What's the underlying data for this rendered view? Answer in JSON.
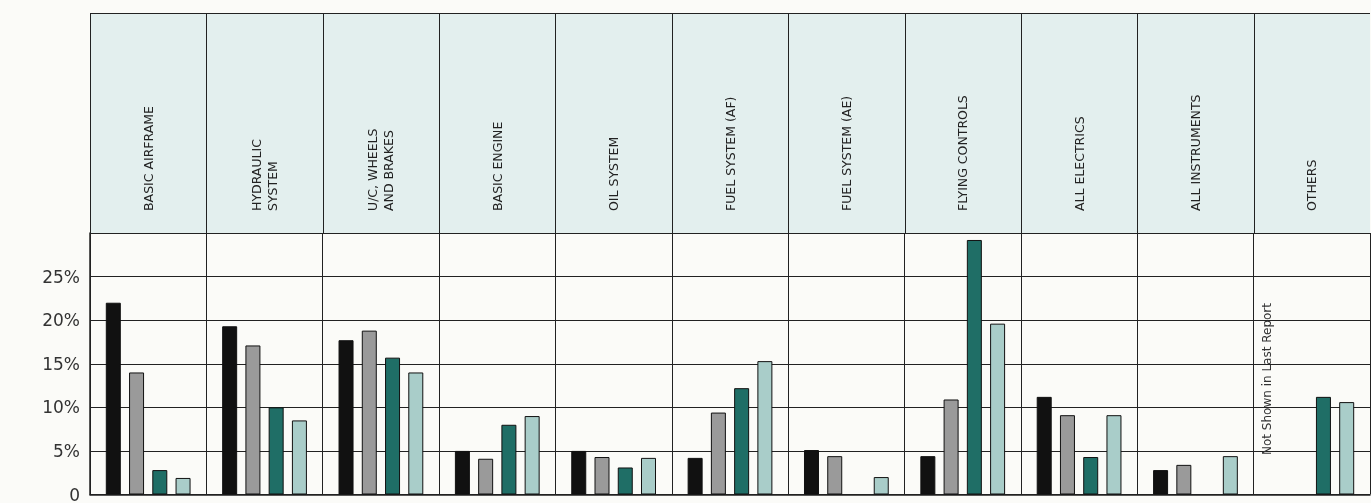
{
  "chart_data": {
    "type": "bar",
    "categories": [
      "BASIC AIRFRAME",
      "HYDRAULIC\nSYSTEM",
      "U/C, WHEELS\nAND BRAKES",
      "BASIC ENGINE",
      "OIL SYSTEM",
      "FUEL SYSTEM (AF)",
      "FUEL SYSTEM (AE)",
      "FLYING CONTROLS",
      "ALL ELECTRICS",
      "ALL INSTRUMENTS",
      "OTHERS"
    ],
    "series": [
      {
        "color": "#111111",
        "values": [
          22,
          19.3,
          17.7,
          5,
          5,
          4.2,
          5.1,
          4.4,
          11.2,
          2.8,
          null
        ]
      },
      {
        "color": "#9a9a9a",
        "values": [
          14,
          17.1,
          18.8,
          4.1,
          4.3,
          9.4,
          4.4,
          10.9,
          9.1,
          3.4,
          null
        ]
      },
      {
        "color": "#1f6e66",
        "values": [
          2.8,
          10,
          15.7,
          8,
          3.1,
          12.2,
          null,
          29.2,
          4.3,
          null,
          11.2
        ]
      },
      {
        "color": "#a9cdc9",
        "values": [
          1.9,
          8.5,
          14,
          9,
          4.2,
          15.3,
          2,
          19.6,
          9.1,
          4.4,
          10.6
        ]
      }
    ],
    "ylim": [
      0,
      30
    ],
    "yticks": [
      {
        "value": 0,
        "label": "0"
      },
      {
        "value": 5,
        "label": "5%"
      },
      {
        "value": 10,
        "label": "10%"
      },
      {
        "value": 15,
        "label": "15%"
      },
      {
        "value": 20,
        "label": "20%"
      },
      {
        "value": 25,
        "label": "25%"
      }
    ],
    "annotations": [
      "Not Shown in Last Report"
    ],
    "grid": true
  }
}
